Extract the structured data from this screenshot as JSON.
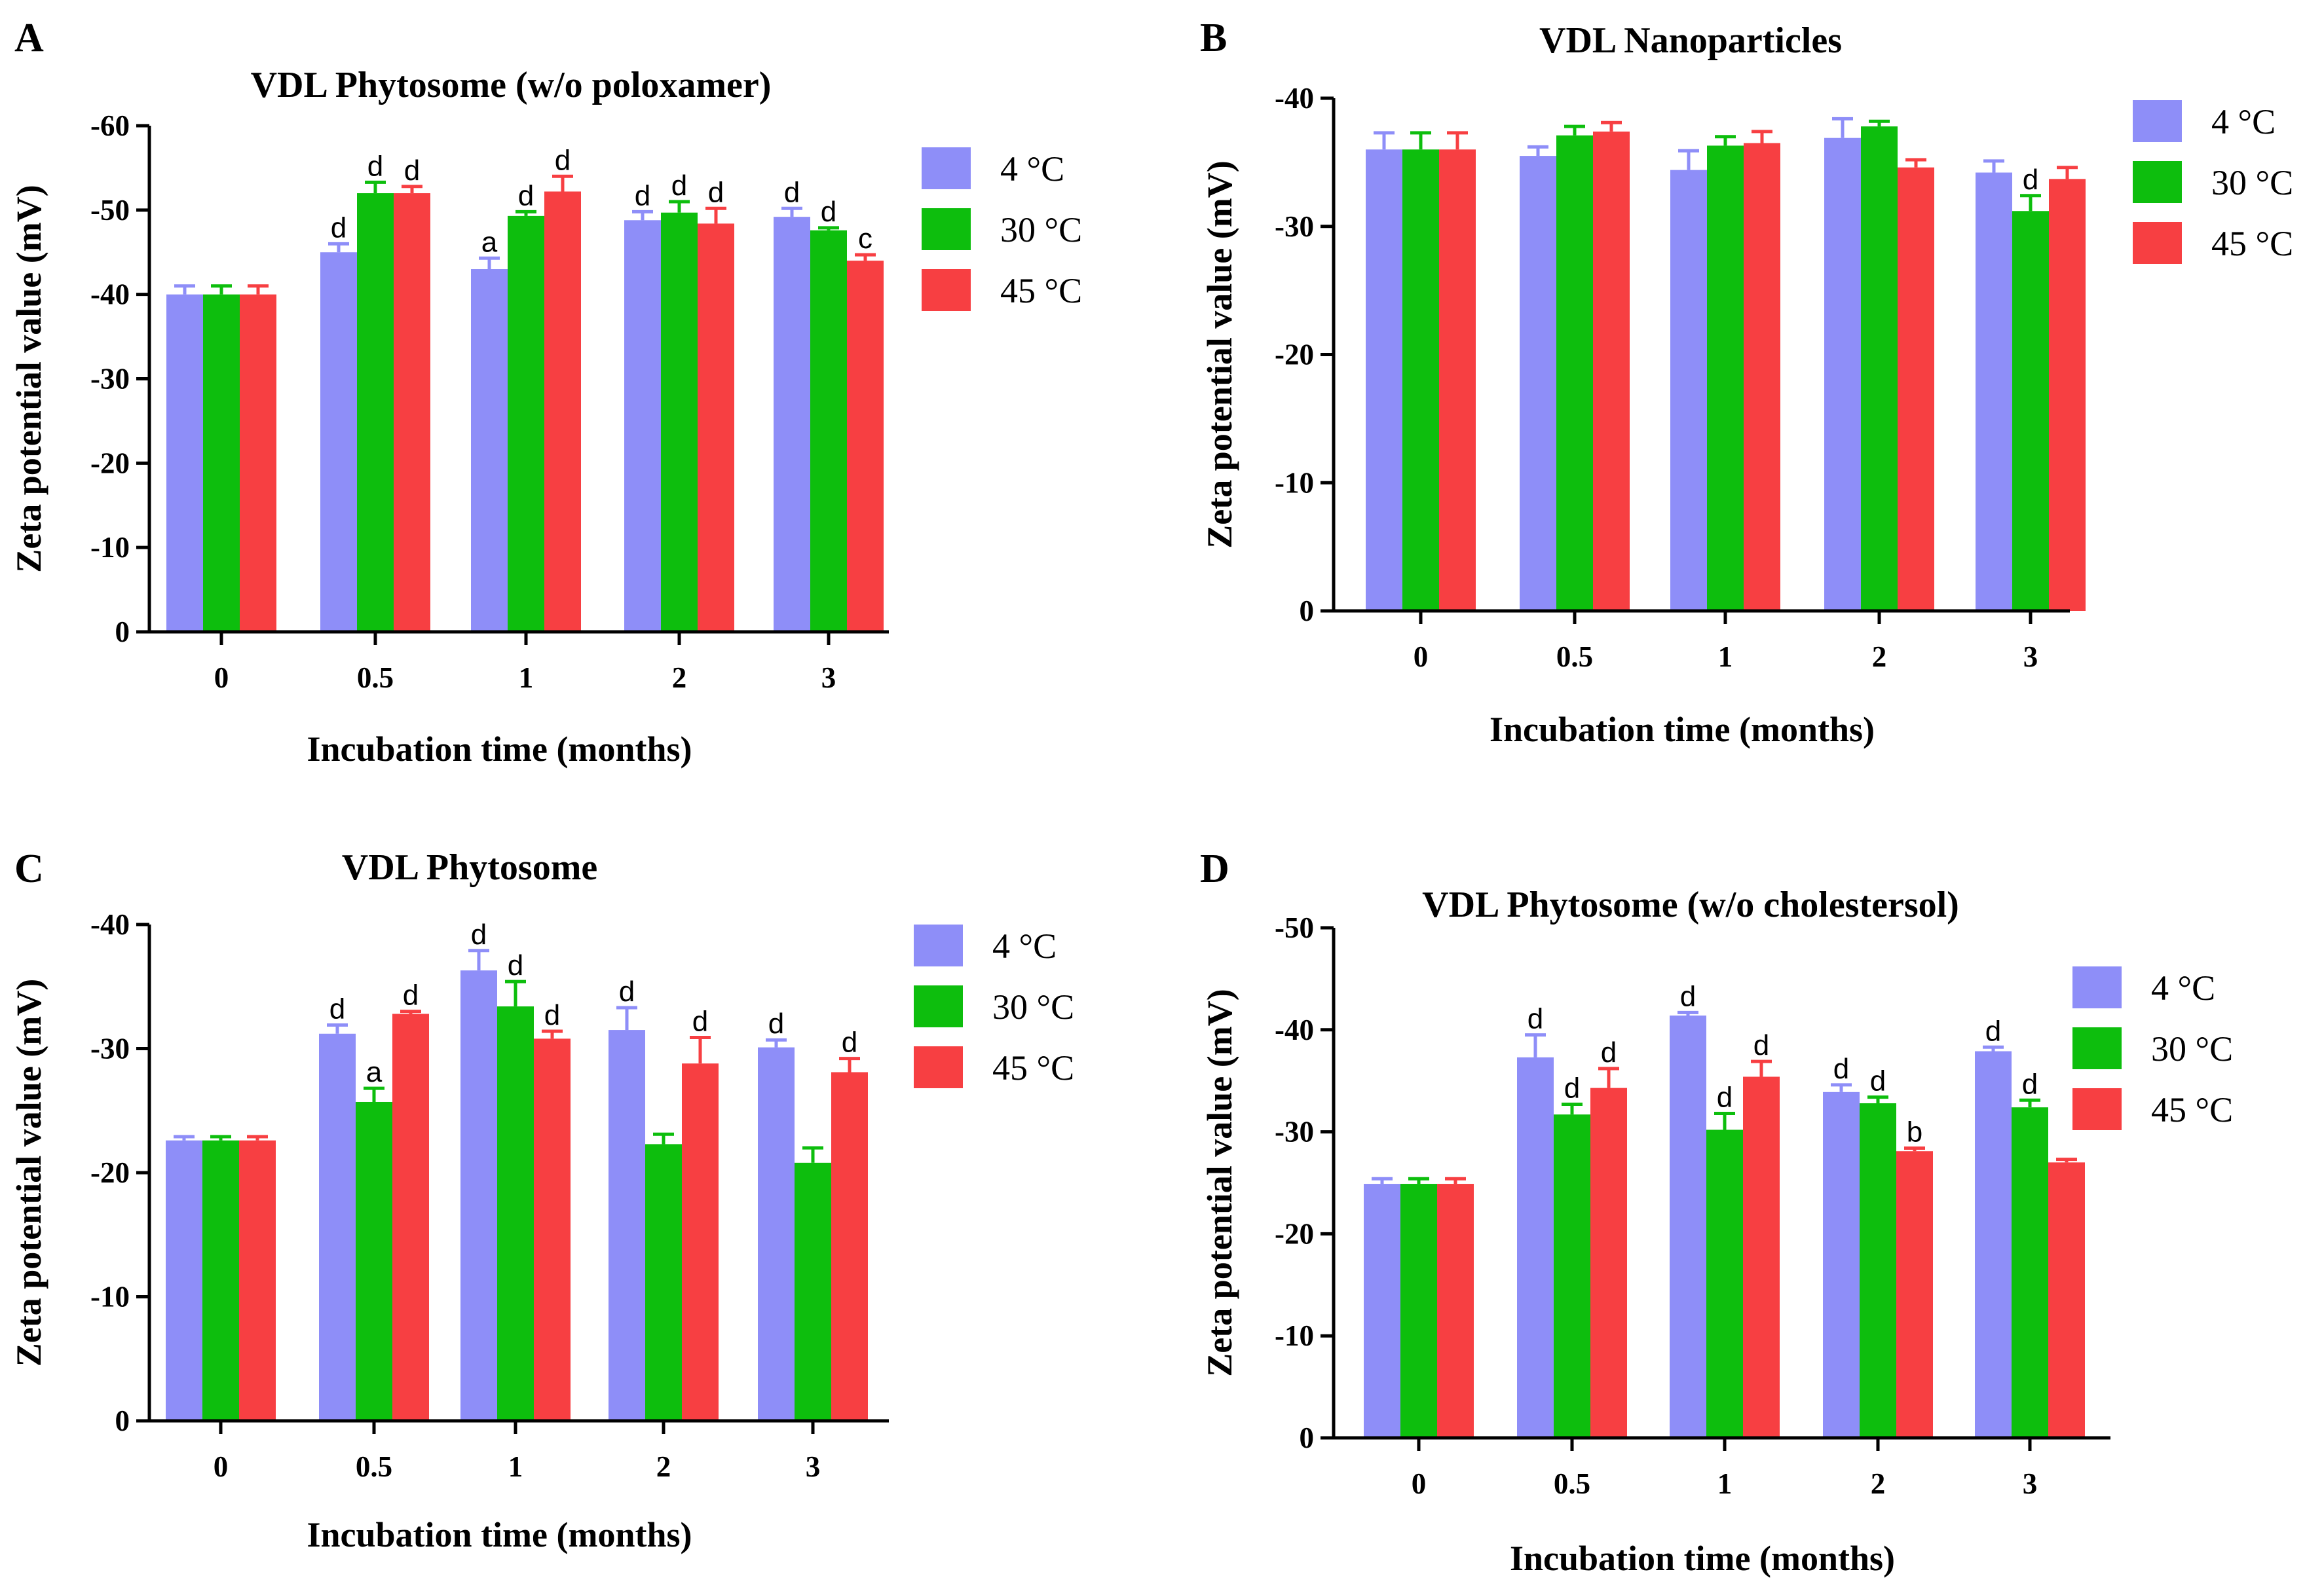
{
  "colors": {
    "c4": "#8E8EF8",
    "c30": "#0DBE0D",
    "c45": "#F73F42"
  },
  "legend": [
    "4 °C",
    "30 °C",
    "45 °C"
  ],
  "chart_data": [
    {
      "panel": "A",
      "type": "bar",
      "title": "VDL Phytosome (w/o poloxamer)",
      "xlabel": "Incubation time (months)",
      "ylabel": "Zeta potential value (mV)",
      "categories": [
        "0",
        "0.5",
        "1",
        "2",
        "3"
      ],
      "ylim": [
        0,
        60
      ],
      "yticks": [
        0,
        10,
        20,
        30,
        40,
        50,
        60
      ],
      "ytick_labels": [
        "0",
        "-10",
        "-20",
        "-30",
        "-40",
        "-50",
        "-60"
      ],
      "series": [
        {
          "name": "4 °C",
          "values": [
            40,
            45,
            43,
            48.8,
            49.2
          ],
          "errors": [
            1,
            1,
            1.3,
            1,
            1
          ],
          "labels": [
            "",
            "d",
            "a",
            "d",
            "d"
          ]
        },
        {
          "name": "30 °C",
          "values": [
            40,
            52,
            49.3,
            49.7,
            47.6
          ],
          "errors": [
            1,
            1.3,
            0.5,
            1.3,
            0.3
          ],
          "labels": [
            "",
            "d",
            "d",
            "d",
            "d"
          ]
        },
        {
          "name": "45 °C",
          "values": [
            40,
            52,
            52.2,
            48.4,
            44
          ],
          "errors": [
            1,
            0.8,
            1.8,
            1.8,
            0.7
          ],
          "labels": [
            "",
            "d",
            "d",
            "d",
            "c"
          ]
        }
      ]
    },
    {
      "panel": "B",
      "type": "bar",
      "title": "VDL Nanoparticles",
      "xlabel": "Incubation time (months)",
      "ylabel": "Zeta potential value (mV)",
      "categories": [
        "0",
        "0.5",
        "1",
        "2",
        "3"
      ],
      "ylim": [
        0,
        40
      ],
      "yticks": [
        0,
        10,
        20,
        30,
        40
      ],
      "ytick_labels": [
        "0",
        "-10",
        "-20",
        "-30",
        "-40"
      ],
      "series": [
        {
          "name": "4 °C",
          "values": [
            36,
            35.5,
            34.4,
            36.9,
            34.2
          ],
          "errors": [
            1.3,
            0.7,
            1.5,
            1.5,
            0.9
          ],
          "labels": [
            "",
            "",
            "",
            "",
            ""
          ]
        },
        {
          "name": "30 °C",
          "values": [
            36,
            37.1,
            36.3,
            37.8,
            31.2
          ],
          "errors": [
            1.3,
            0.7,
            0.7,
            0.4,
            1.2
          ],
          "labels": [
            "",
            "",
            "",
            "",
            "d"
          ]
        },
        {
          "name": "45 °C",
          "values": [
            36,
            37.4,
            36.5,
            34.6,
            33.7
          ],
          "errors": [
            1.3,
            0.7,
            0.9,
            0.6,
            0.9
          ],
          "labels": [
            "",
            "",
            "",
            "",
            ""
          ]
        }
      ]
    },
    {
      "panel": "C",
      "type": "bar",
      "title": "VDL Phytosome",
      "xlabel": "Incubation time (months)",
      "ylabel": "Zeta potential value (mV)",
      "categories": [
        "0",
        "0.5",
        "1",
        "2",
        "3"
      ],
      "ylim": [
        0,
        40
      ],
      "yticks": [
        0,
        10,
        20,
        30,
        40
      ],
      "ytick_labels": [
        "0",
        "-10",
        "-20",
        "-30",
        "-40"
      ],
      "series": [
        {
          "name": "4 °C",
          "values": [
            22.6,
            31.2,
            36.3,
            31.5,
            30.1
          ],
          "errors": [
            0.3,
            0.7,
            1.6,
            1.8,
            0.6
          ],
          "labels": [
            "",
            "d",
            "d",
            "d",
            "d"
          ]
        },
        {
          "name": "30 °C",
          "values": [
            22.6,
            25.7,
            33.4,
            22.3,
            20.8
          ],
          "errors": [
            0.3,
            1.1,
            2,
            0.8,
            1.2
          ],
          "labels": [
            "",
            "a",
            "d",
            "",
            ""
          ]
        },
        {
          "name": "45 °C",
          "values": [
            22.6,
            32.8,
            30.8,
            28.8,
            28.1
          ],
          "errors": [
            0.3,
            0.2,
            0.6,
            2.1,
            1.1
          ],
          "labels": [
            "",
            "d",
            "d",
            "d",
            "d"
          ]
        }
      ]
    },
    {
      "panel": "D",
      "type": "bar",
      "title": "VDL Phytosome (w/o cholestersol)",
      "xlabel": "Incubation time (months)",
      "ylabel": "Zeta potential value (mV)",
      "categories": [
        "0",
        "0.5",
        "1",
        "2",
        "3"
      ],
      "ylim": [
        0,
        50
      ],
      "yticks": [
        0,
        10,
        20,
        30,
        40,
        50
      ],
      "ytick_labels": [
        "0",
        "-10",
        "-20",
        "-30",
        "-40",
        "-50"
      ],
      "series": [
        {
          "name": "4 °C",
          "values": [
            24.9,
            37.3,
            41.4,
            33.9,
            37.9
          ],
          "errors": [
            0.5,
            2.2,
            0.3,
            0.7,
            0.4
          ],
          "labels": [
            "",
            "d",
            "d",
            "d",
            "d"
          ]
        },
        {
          "name": "30 °C",
          "values": [
            24.9,
            31.7,
            30.2,
            32.8,
            32.4
          ],
          "errors": [
            0.5,
            1,
            1.6,
            0.6,
            0.7
          ],
          "labels": [
            "",
            "d",
            "d",
            "d",
            "d"
          ]
        },
        {
          "name": "45 °C",
          "values": [
            24.9,
            34.3,
            35.4,
            28.1,
            27
          ],
          "errors": [
            0.5,
            1.9,
            1.5,
            0.3,
            0.3
          ],
          "labels": [
            "",
            "d",
            "d",
            "b",
            ""
          ]
        }
      ]
    }
  ]
}
